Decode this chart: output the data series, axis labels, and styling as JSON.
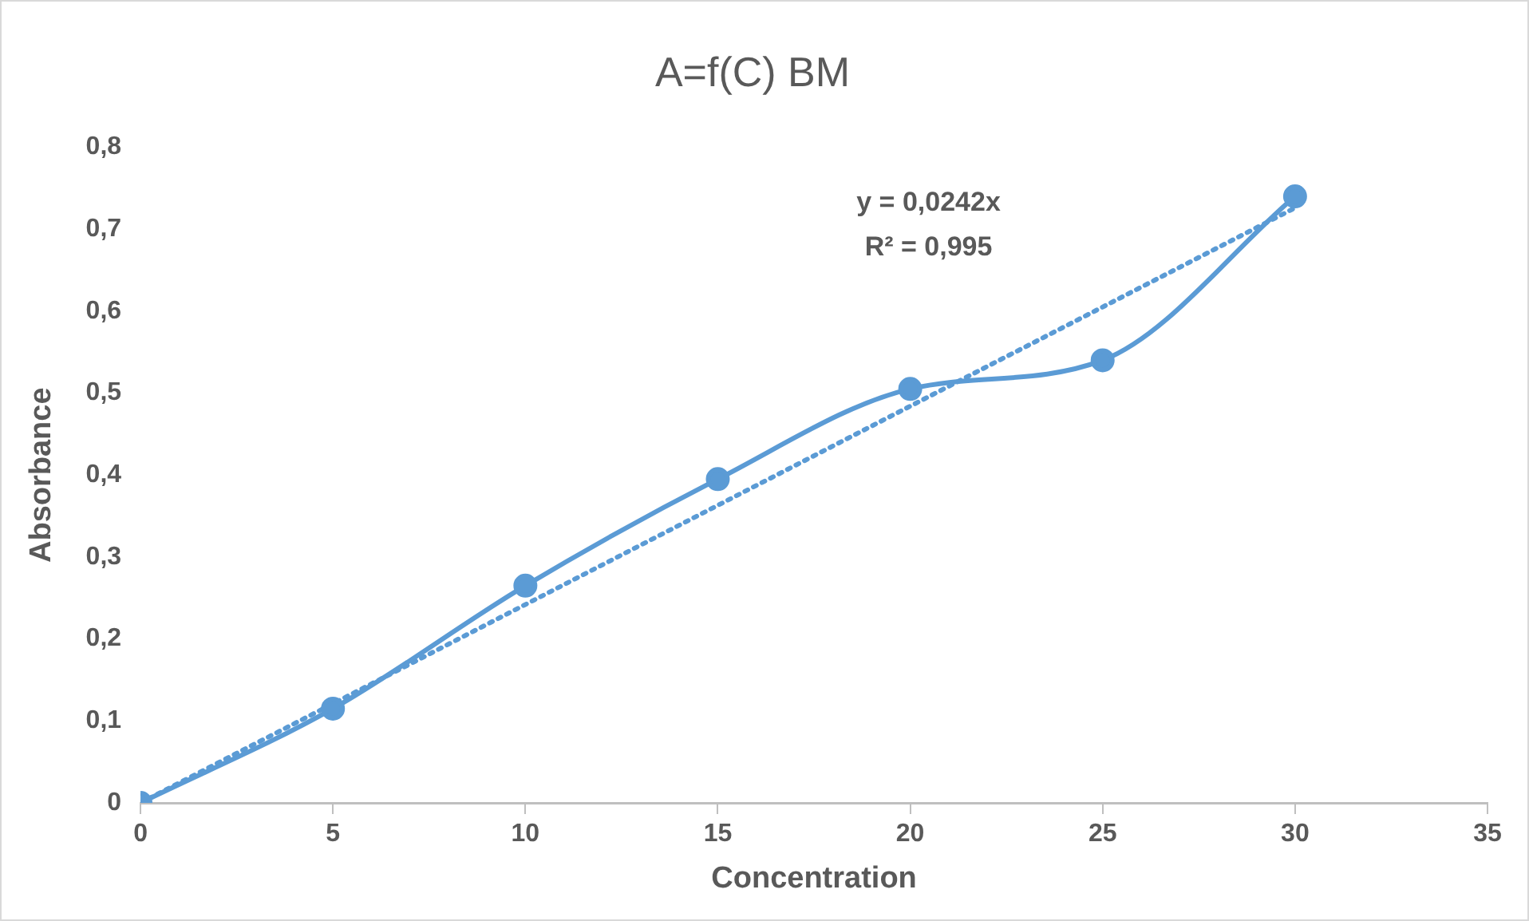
{
  "chart_data": {
    "type": "line",
    "title": "A=f(C) BM",
    "xlabel": "Concentration",
    "ylabel": "Absorbance",
    "xlim": [
      0,
      35
    ],
    "xticks": [
      0,
      5,
      10,
      15,
      20,
      25,
      30,
      35
    ],
    "ylim": [
      0,
      0.8
    ],
    "yticks": [
      {
        "value": 0,
        "label": "0"
      },
      {
        "value": 0.1,
        "label": "0,1"
      },
      {
        "value": 0.2,
        "label": "0,2"
      },
      {
        "value": 0.3,
        "label": "0,3"
      },
      {
        "value": 0.4,
        "label": "0,4"
      },
      {
        "value": 0.5,
        "label": "0,5"
      },
      {
        "value": 0.6,
        "label": "0,6"
      },
      {
        "value": 0.7,
        "label": "0,7"
      },
      {
        "value": 0.8,
        "label": "0,8"
      }
    ],
    "grid": false,
    "legend": false,
    "annotations": [
      "y = 0,0242x",
      "R² = 0,995"
    ],
    "series": [
      {
        "color": "#5b9bd5",
        "x": [
          0,
          5,
          10,
          15,
          20,
          25,
          30
        ],
        "values": [
          0,
          0.115,
          0.265,
          0.395,
          0.505,
          0.54,
          0.74
        ],
        "marker": "circle",
        "line_style": "solid"
      },
      {
        "color": "#5b9bd5",
        "x": [
          0,
          30
        ],
        "values": [
          0,
          0.726
        ],
        "marker": "none",
        "line_style": "dotted"
      }
    ]
  }
}
